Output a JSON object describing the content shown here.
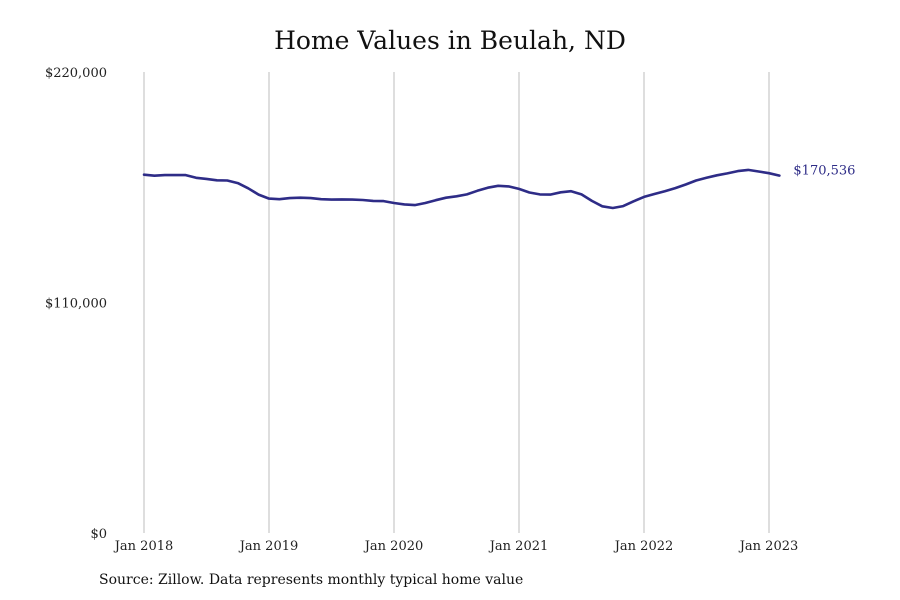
{
  "chart_data": {
    "type": "line",
    "title": "Home Values in Beulah, ND",
    "xlabel": "",
    "ylabel": "",
    "xlim": [
      "2018-01",
      "2023-03"
    ],
    "ylim": [
      0,
      220000
    ],
    "grid": "vertical",
    "y_ticks": [
      {
        "value": 0,
        "label": "$0"
      },
      {
        "value": 110000,
        "label": "$110,000"
      },
      {
        "value": 220000,
        "label": "$220,000"
      }
    ],
    "x_ticks": [
      {
        "date": "2018-01",
        "label": "Jan 2018"
      },
      {
        "date": "2019-01",
        "label": "Jan 2019"
      },
      {
        "date": "2020-01",
        "label": "Jan 2020"
      },
      {
        "date": "2021-01",
        "label": "Jan 2021"
      },
      {
        "date": "2022-01",
        "label": "Jan 2022"
      },
      {
        "date": "2023-01",
        "label": "Jan 2023"
      }
    ],
    "series": [
      {
        "color": "#2e2c87",
        "end_label": "$170,536",
        "x": [
          "2018-01",
          "2018-02",
          "2018-03",
          "2018-04",
          "2018-05",
          "2018-06",
          "2018-07",
          "2018-08",
          "2018-09",
          "2018-10",
          "2018-11",
          "2018-12",
          "2019-01",
          "2019-02",
          "2019-03",
          "2019-04",
          "2019-05",
          "2019-06",
          "2019-07",
          "2019-08",
          "2019-09",
          "2019-10",
          "2019-11",
          "2019-12",
          "2020-01",
          "2020-02",
          "2020-03",
          "2020-04",
          "2020-05",
          "2020-06",
          "2020-07",
          "2020-08",
          "2020-09",
          "2020-10",
          "2020-11",
          "2020-12",
          "2021-01",
          "2021-02",
          "2021-03",
          "2021-04",
          "2021-05",
          "2021-06",
          "2021-07",
          "2021-08",
          "2021-09",
          "2021-10",
          "2021-11",
          "2021-12",
          "2022-01",
          "2022-02",
          "2022-03",
          "2022-04",
          "2022-05",
          "2022-06",
          "2022-07",
          "2022-08",
          "2022-09",
          "2022-10",
          "2022-11",
          "2022-12",
          "2023-01",
          "2023-02"
        ],
        "values": [
          171000,
          170500,
          170800,
          170800,
          170800,
          169500,
          169000,
          168300,
          168200,
          167000,
          164500,
          161500,
          159600,
          159300,
          159800,
          160000,
          159800,
          159300,
          159100,
          159200,
          159100,
          158900,
          158500,
          158400,
          157500,
          156800,
          156500,
          157500,
          158800,
          160000,
          160700,
          161600,
          163300,
          164800,
          165700,
          165400,
          164200,
          162500,
          161600,
          161500,
          162600,
          163100,
          161600,
          158500,
          155900,
          155100,
          156000,
          158300,
          160400,
          161800,
          163100,
          164600,
          166300,
          168200,
          169500,
          170700,
          171600,
          172700,
          173300,
          172500,
          171700,
          170536
        ]
      }
    ]
  },
  "footer": {
    "source_note": "Source: Zillow. Data represents monthly typical home value"
  }
}
